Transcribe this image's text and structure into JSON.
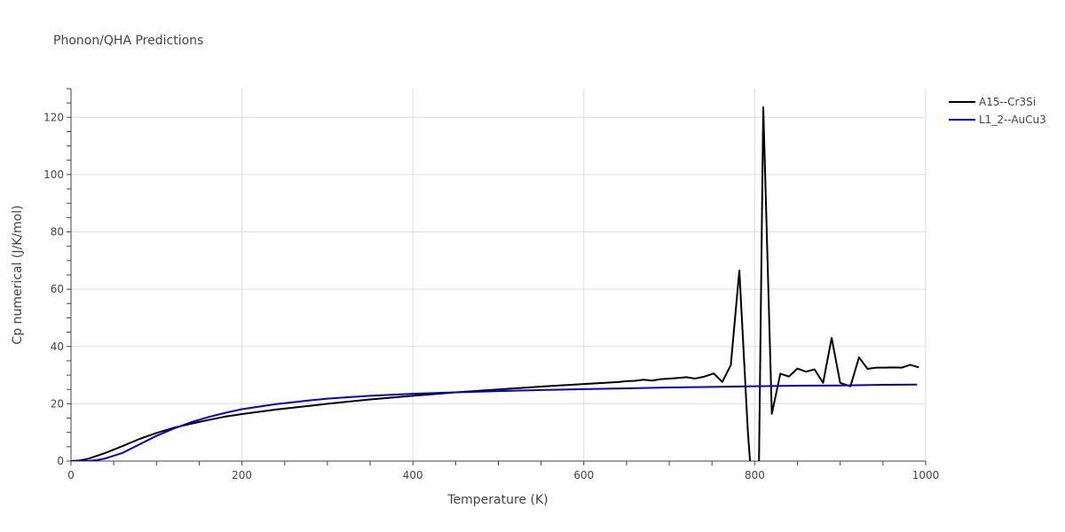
{
  "chart_data": {
    "type": "line",
    "title": "Phonon/QHA Predictions",
    "xlabel": "Temperature (K)",
    "ylabel": "Cp numerical (J/K/mol)",
    "xlim": [
      0,
      1000
    ],
    "ylim": [
      0,
      130
    ],
    "x_ticks": [
      0,
      200,
      400,
      600,
      800,
      1000
    ],
    "y_ticks": [
      0,
      20,
      40,
      60,
      80,
      100,
      120
    ],
    "grid": true,
    "legend_position": "top-right",
    "series": [
      {
        "name": "A15--Cr3Si",
        "color": "#000000",
        "x": [
          0,
          10,
          20,
          40,
          60,
          80,
          100,
          120,
          140,
          160,
          180,
          200,
          240,
          280,
          300,
          350,
          400,
          450,
          500,
          550,
          600,
          640,
          650,
          660,
          670,
          680,
          690,
          700,
          710,
          720,
          730,
          740,
          752,
          762,
          772,
          782,
          792,
          795,
          800,
          805,
          810,
          820,
          830,
          840,
          850,
          860,
          870,
          880,
          890,
          900,
          912,
          922,
          932,
          942,
          952,
          962,
          972,
          982,
          992
        ],
        "y": [
          0,
          0.2,
          0.8,
          2.8,
          5.2,
          7.7,
          9.8,
          11.6,
          13.0,
          14.3,
          15.5,
          16.4,
          18.0,
          19.3,
          20.0,
          21.5,
          22.8,
          24.0,
          25.0,
          26.0,
          26.9,
          27.6,
          27.9,
          28.0,
          28.4,
          28.1,
          28.6,
          28.8,
          29.0,
          29.3,
          28.8,
          29.4,
          30.6,
          27.6,
          33.5,
          66.5,
          10.0,
          -2.0,
          -2.0,
          0,
          123.5,
          16.5,
          30.5,
          29.5,
          32.3,
          31.2,
          32.0,
          27.3,
          43.0,
          27.3,
          26.1,
          36.2,
          32.2,
          32.6,
          32.6,
          32.7,
          32.6,
          33.6,
          32.7
        ]
      },
      {
        "name": "L1_2--AuCu3",
        "color": "#0000dd",
        "x": [
          0,
          20,
          30,
          40,
          60,
          80,
          100,
          120,
          140,
          160,
          180,
          200,
          240,
          280,
          300,
          350,
          400,
          450,
          500,
          550,
          600,
          650,
          700,
          750,
          800,
          850,
          900,
          950,
          990
        ],
        "y": [
          0,
          0.05,
          0.3,
          0.9,
          2.8,
          5.8,
          8.8,
          11.3,
          13.5,
          15.3,
          16.8,
          18.1,
          19.9,
          21.2,
          21.8,
          22.8,
          23.5,
          24.0,
          24.4,
          24.8,
          25.1,
          25.4,
          25.7,
          25.9,
          26.1,
          26.3,
          26.4,
          26.6,
          26.7
        ]
      }
    ]
  }
}
